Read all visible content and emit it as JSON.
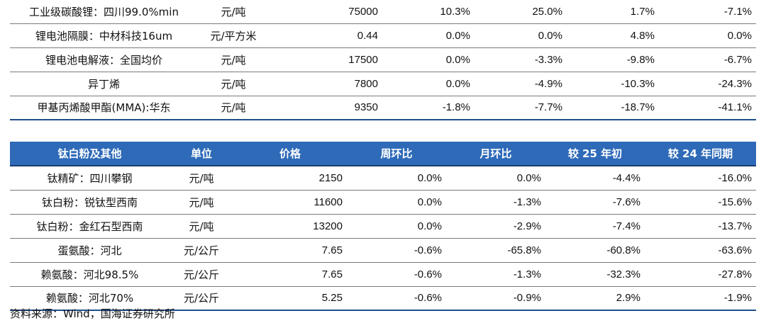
{
  "top_table": {
    "rows": [
      {
        "name": "工业级碳酸锂：四川99.0%min",
        "unit": "元/吨",
        "price": "75000",
        "wow": "10.3%",
        "mom": "25.0%",
        "ytd": "1.7%",
        "yoy": "-7.1%"
      },
      {
        "name": "锂电池隔膜：中材科技16um",
        "unit": "元/平方米",
        "price": "0.44",
        "wow": "0.0%",
        "mom": "0.0%",
        "ytd": "4.8%",
        "yoy": "0.0%"
      },
      {
        "name": "锂电池电解液：全国均价",
        "unit": "元/吨",
        "price": "17500",
        "wow": "0.0%",
        "mom": "-3.3%",
        "ytd": "-9.8%",
        "yoy": "-6.7%"
      },
      {
        "name": "异丁烯",
        "unit": "元/吨",
        "price": "7800",
        "wow": "0.0%",
        "mom": "-4.9%",
        "ytd": "-10.3%",
        "yoy": "-24.3%"
      },
      {
        "name": "甲基丙烯酸甲酯(MMA):华东",
        "unit": "元/吨",
        "price": "9350",
        "wow": "-1.8%",
        "mom": "-7.7%",
        "ytd": "-18.7%",
        "yoy": "-41.1%"
      }
    ]
  },
  "bottom_table": {
    "headers": {
      "name": "钛白粉及其他",
      "unit": "单位",
      "price": "价格",
      "wow": "周环比",
      "mom": "月环比",
      "ytd": "较 25 年初",
      "yoy": "较 24 年同期"
    },
    "header_color": "#2e6ab8",
    "rows": [
      {
        "name": "钛精矿：四川攀钢",
        "unit": "元/吨",
        "price": "2150",
        "wow": "0.0%",
        "mom": "0.0%",
        "ytd": "-4.4%",
        "yoy": "-16.0%"
      },
      {
        "name": "钛白粉：锐钛型西南",
        "unit": "元/吨",
        "price": "11600",
        "wow": "0.0%",
        "mom": "-1.3%",
        "ytd": "-7.6%",
        "yoy": "-15.6%"
      },
      {
        "name": "钛白粉：金红石型西南",
        "unit": "元/吨",
        "price": "13200",
        "wow": "0.0%",
        "mom": "-2.9%",
        "ytd": "-7.4%",
        "yoy": "-13.7%"
      },
      {
        "name": "蛋氨酸：河北",
        "unit": "元/公斤",
        "price": "7.65",
        "wow": "-0.6%",
        "mom": "-65.8%",
        "ytd": "-60.8%",
        "yoy": "-63.6%"
      },
      {
        "name": "赖氨酸：河北98.5%",
        "unit": "元/公斤",
        "price": "7.65",
        "wow": "-0.6%",
        "mom": "-1.3%",
        "ytd": "-32.3%",
        "yoy": "-27.8%"
      },
      {
        "name": "赖氨酸：河北70%",
        "unit": "元/公斤",
        "price": "5.25",
        "wow": "-0.6%",
        "mom": "-0.9%",
        "ytd": "2.9%",
        "yoy": "-1.9%"
      }
    ]
  },
  "source": "资料来源：Wind，国海证券研究所"
}
